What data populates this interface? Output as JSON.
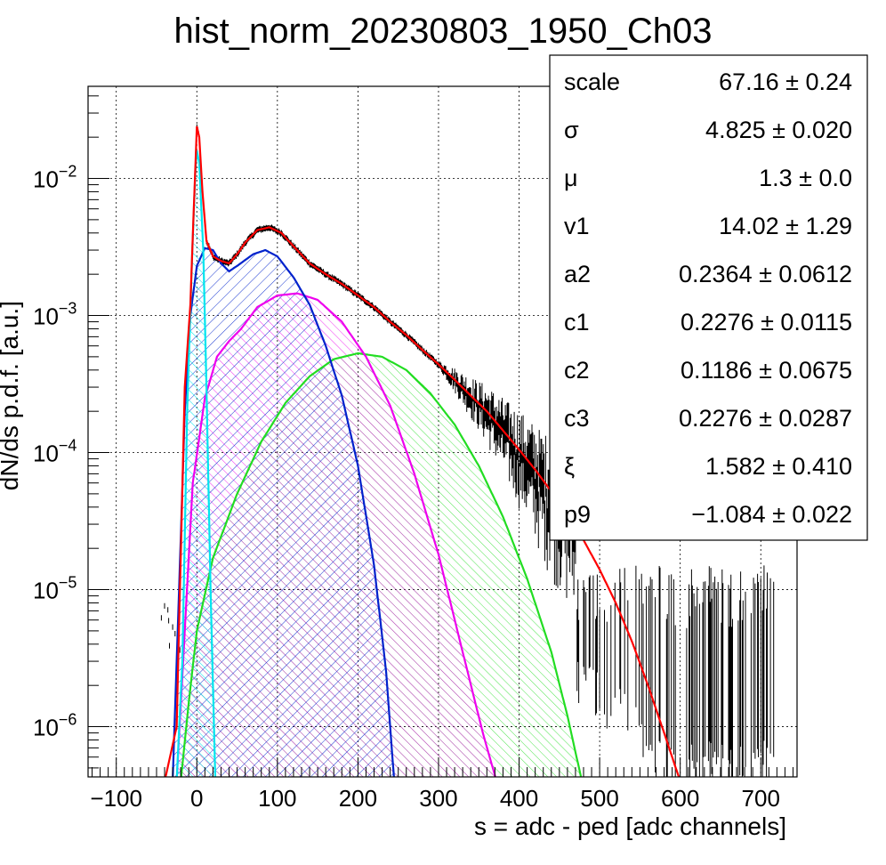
{
  "chart_data": {
    "type": "line",
    "title": "hist_norm_20230803_1950_Ch03",
    "xlabel": "s = adc - ped [adc channels]",
    "ylabel": "dN/ds p.d.f. [a.u.]",
    "xlim": [
      -135,
      745
    ],
    "ylim": [
      4.3e-07,
      0.047
    ],
    "yscale": "log",
    "grid": true,
    "x_ticks": [
      -100,
      0,
      100,
      200,
      300,
      400,
      500,
      600,
      700
    ],
    "y_ticks": [
      {
        "value": 1e-06,
        "exp": "−6"
      },
      {
        "value": 1e-05,
        "exp": "−5"
      },
      {
        "value": 0.0001,
        "exp": "−4"
      },
      {
        "value": 0.001,
        "exp": "−3"
      },
      {
        "value": 0.01,
        "exp": "−2"
      }
    ],
    "series": [
      {
        "color": "#ff0000",
        "style": "line",
        "points": [
          [
            -40,
            4e-07
          ],
          [
            -25,
            1e-06
          ],
          [
            -15,
            0.0003
          ],
          [
            -8,
            0.0012
          ],
          [
            -3,
            0.008
          ],
          [
            0,
            0.024
          ],
          [
            3,
            0.02
          ],
          [
            7,
            0.008
          ],
          [
            12,
            0.0035
          ],
          [
            20,
            0.0027
          ],
          [
            30,
            0.0025
          ],
          [
            40,
            0.0024
          ],
          [
            50,
            0.0028
          ],
          [
            60,
            0.0034
          ],
          [
            75,
            0.0042
          ],
          [
            90,
            0.0044
          ],
          [
            105,
            0.004
          ],
          [
            120,
            0.0032
          ],
          [
            140,
            0.0024
          ],
          [
            160,
            0.002
          ],
          [
            180,
            0.0017
          ],
          [
            200,
            0.0014
          ],
          [
            220,
            0.00115
          ],
          [
            240,
            0.0009
          ],
          [
            260,
            0.00072
          ],
          [
            280,
            0.00056
          ],
          [
            300,
            0.00044
          ],
          [
            320,
            0.00034
          ],
          [
            340,
            0.00026
          ],
          [
            360,
            0.0002
          ],
          [
            380,
            0.000145
          ],
          [
            400,
            0.000105
          ],
          [
            420,
            7.5e-05
          ],
          [
            440,
            5.2e-05
          ],
          [
            460,
            3.5e-05
          ],
          [
            480,
            2.3e-05
          ],
          [
            500,
            1.4e-05
          ],
          [
            520,
            8e-06
          ],
          [
            540,
            4.2e-06
          ],
          [
            560,
            2e-06
          ],
          [
            580,
            9e-07
          ],
          [
            600,
            4e-07
          ]
        ]
      },
      {
        "color": "#00e5ee",
        "style": "filled",
        "points": [
          [
            -25,
            4e-07
          ],
          [
            -18,
            3e-06
          ],
          [
            -12,
            0.0002
          ],
          [
            -6,
            0.0025
          ],
          [
            -2,
            0.011
          ],
          [
            0,
            0.016
          ],
          [
            3,
            0.013
          ],
          [
            8,
            0.003
          ],
          [
            12,
            0.0003
          ],
          [
            17,
            1e-05
          ],
          [
            23,
            4e-07
          ]
        ]
      },
      {
        "color": "#0022cc",
        "style": "filled",
        "points": [
          [
            -30,
            4e-07
          ],
          [
            -22,
            1e-05
          ],
          [
            -15,
            0.0002
          ],
          [
            -8,
            0.001
          ],
          [
            0,
            0.0023
          ],
          [
            10,
            0.0031
          ],
          [
            20,
            0.003
          ],
          [
            30,
            0.0024
          ],
          [
            40,
            0.0021
          ],
          [
            50,
            0.0023
          ],
          [
            70,
            0.0028
          ],
          [
            85,
            0.003
          ],
          [
            100,
            0.0027
          ],
          [
            120,
            0.0019
          ],
          [
            140,
            0.0012
          ],
          [
            160,
            0.0006
          ],
          [
            180,
            0.00026
          ],
          [
            200,
            8e-05
          ],
          [
            220,
            1.5e-05
          ],
          [
            235,
            2.5e-06
          ],
          [
            245,
            4e-07
          ]
        ]
      },
      {
        "color": "#ee00ee",
        "style": "filled",
        "points": [
          [
            -25,
            4e-07
          ],
          [
            -15,
            5e-06
          ],
          [
            -5,
            6e-05
          ],
          [
            10,
            0.00025
          ],
          [
            25,
            0.0005
          ],
          [
            40,
            0.00065
          ],
          [
            55,
            0.0008
          ],
          [
            75,
            0.00115
          ],
          [
            100,
            0.0014
          ],
          [
            125,
            0.00145
          ],
          [
            150,
            0.0013
          ],
          [
            180,
            0.0009
          ],
          [
            210,
            0.0005
          ],
          [
            240,
            0.00022
          ],
          [
            270,
            7e-05
          ],
          [
            300,
            1.8e-05
          ],
          [
            330,
            3.5e-06
          ],
          [
            355,
            9e-07
          ],
          [
            372,
            4e-07
          ]
        ]
      },
      {
        "color": "#22dd22",
        "style": "filled",
        "points": [
          [
            -20,
            4e-07
          ],
          [
            -10,
            1.5e-06
          ],
          [
            0,
            5e-06
          ],
          [
            20,
            1.7e-05
          ],
          [
            50,
            5e-05
          ],
          [
            80,
            0.00012
          ],
          [
            110,
            0.00023
          ],
          [
            140,
            0.00036
          ],
          [
            170,
            0.00048
          ],
          [
            200,
            0.00053
          ],
          [
            230,
            0.0005
          ],
          [
            260,
            0.0004
          ],
          [
            290,
            0.00027
          ],
          [
            320,
            0.00016
          ],
          [
            350,
            8e-05
          ],
          [
            380,
            3.4e-05
          ],
          [
            410,
            1.2e-05
          ],
          [
            440,
            3.5e-06
          ],
          [
            460,
            1.2e-06
          ],
          [
            478,
            4e-07
          ]
        ]
      }
    ],
    "histogram": {
      "color": "#000000",
      "x_range": [
        -45,
        720
      ],
      "binwidth": 1
    }
  },
  "stats": [
    {
      "name": "scale",
      "value": "67.16 ± 0.24"
    },
    {
      "name": "σ",
      "value": "4.825 ± 0.020"
    },
    {
      "name": "μ",
      "value": "1.3 ± 0.0"
    },
    {
      "name": "v1",
      "value": "14.02 ± 1.29"
    },
    {
      "name": "a2",
      "value": "0.2364 ± 0.0612"
    },
    {
      "name": "c1",
      "value": "0.2276 ± 0.0115"
    },
    {
      "name": "c2",
      "value": "0.1186 ± 0.0675"
    },
    {
      "name": "c3",
      "value": "0.2276 ± 0.0287"
    },
    {
      "name": "ξ",
      "value": "1.582 ± 0.410"
    },
    {
      "name": "p9",
      "value": "−1.084 ± 0.022"
    }
  ]
}
